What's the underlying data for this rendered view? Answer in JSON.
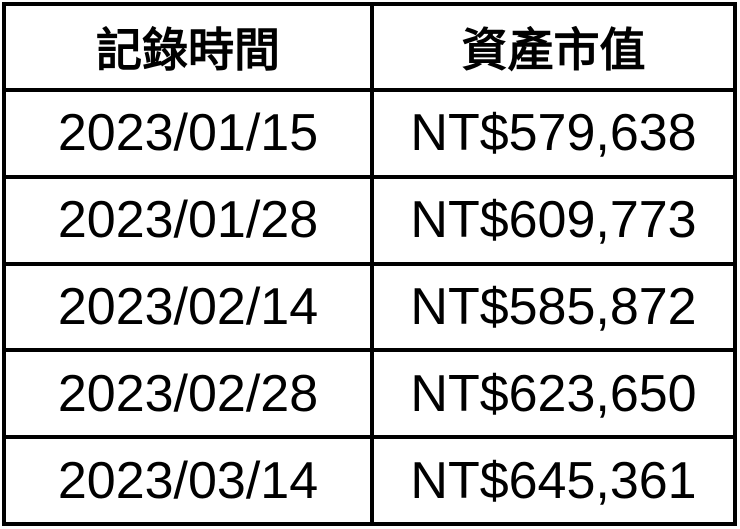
{
  "table": {
    "headers": [
      "記錄時間",
      "資產市值"
    ],
    "rows": [
      [
        "2023/01/15",
        "NT$579,638"
      ],
      [
        "2023/01/28",
        "NT$609,773"
      ],
      [
        "2023/02/14",
        "NT$585,872"
      ],
      [
        "2023/02/28",
        "NT$623,650"
      ],
      [
        "2023/03/14",
        "NT$645,361"
      ]
    ]
  }
}
